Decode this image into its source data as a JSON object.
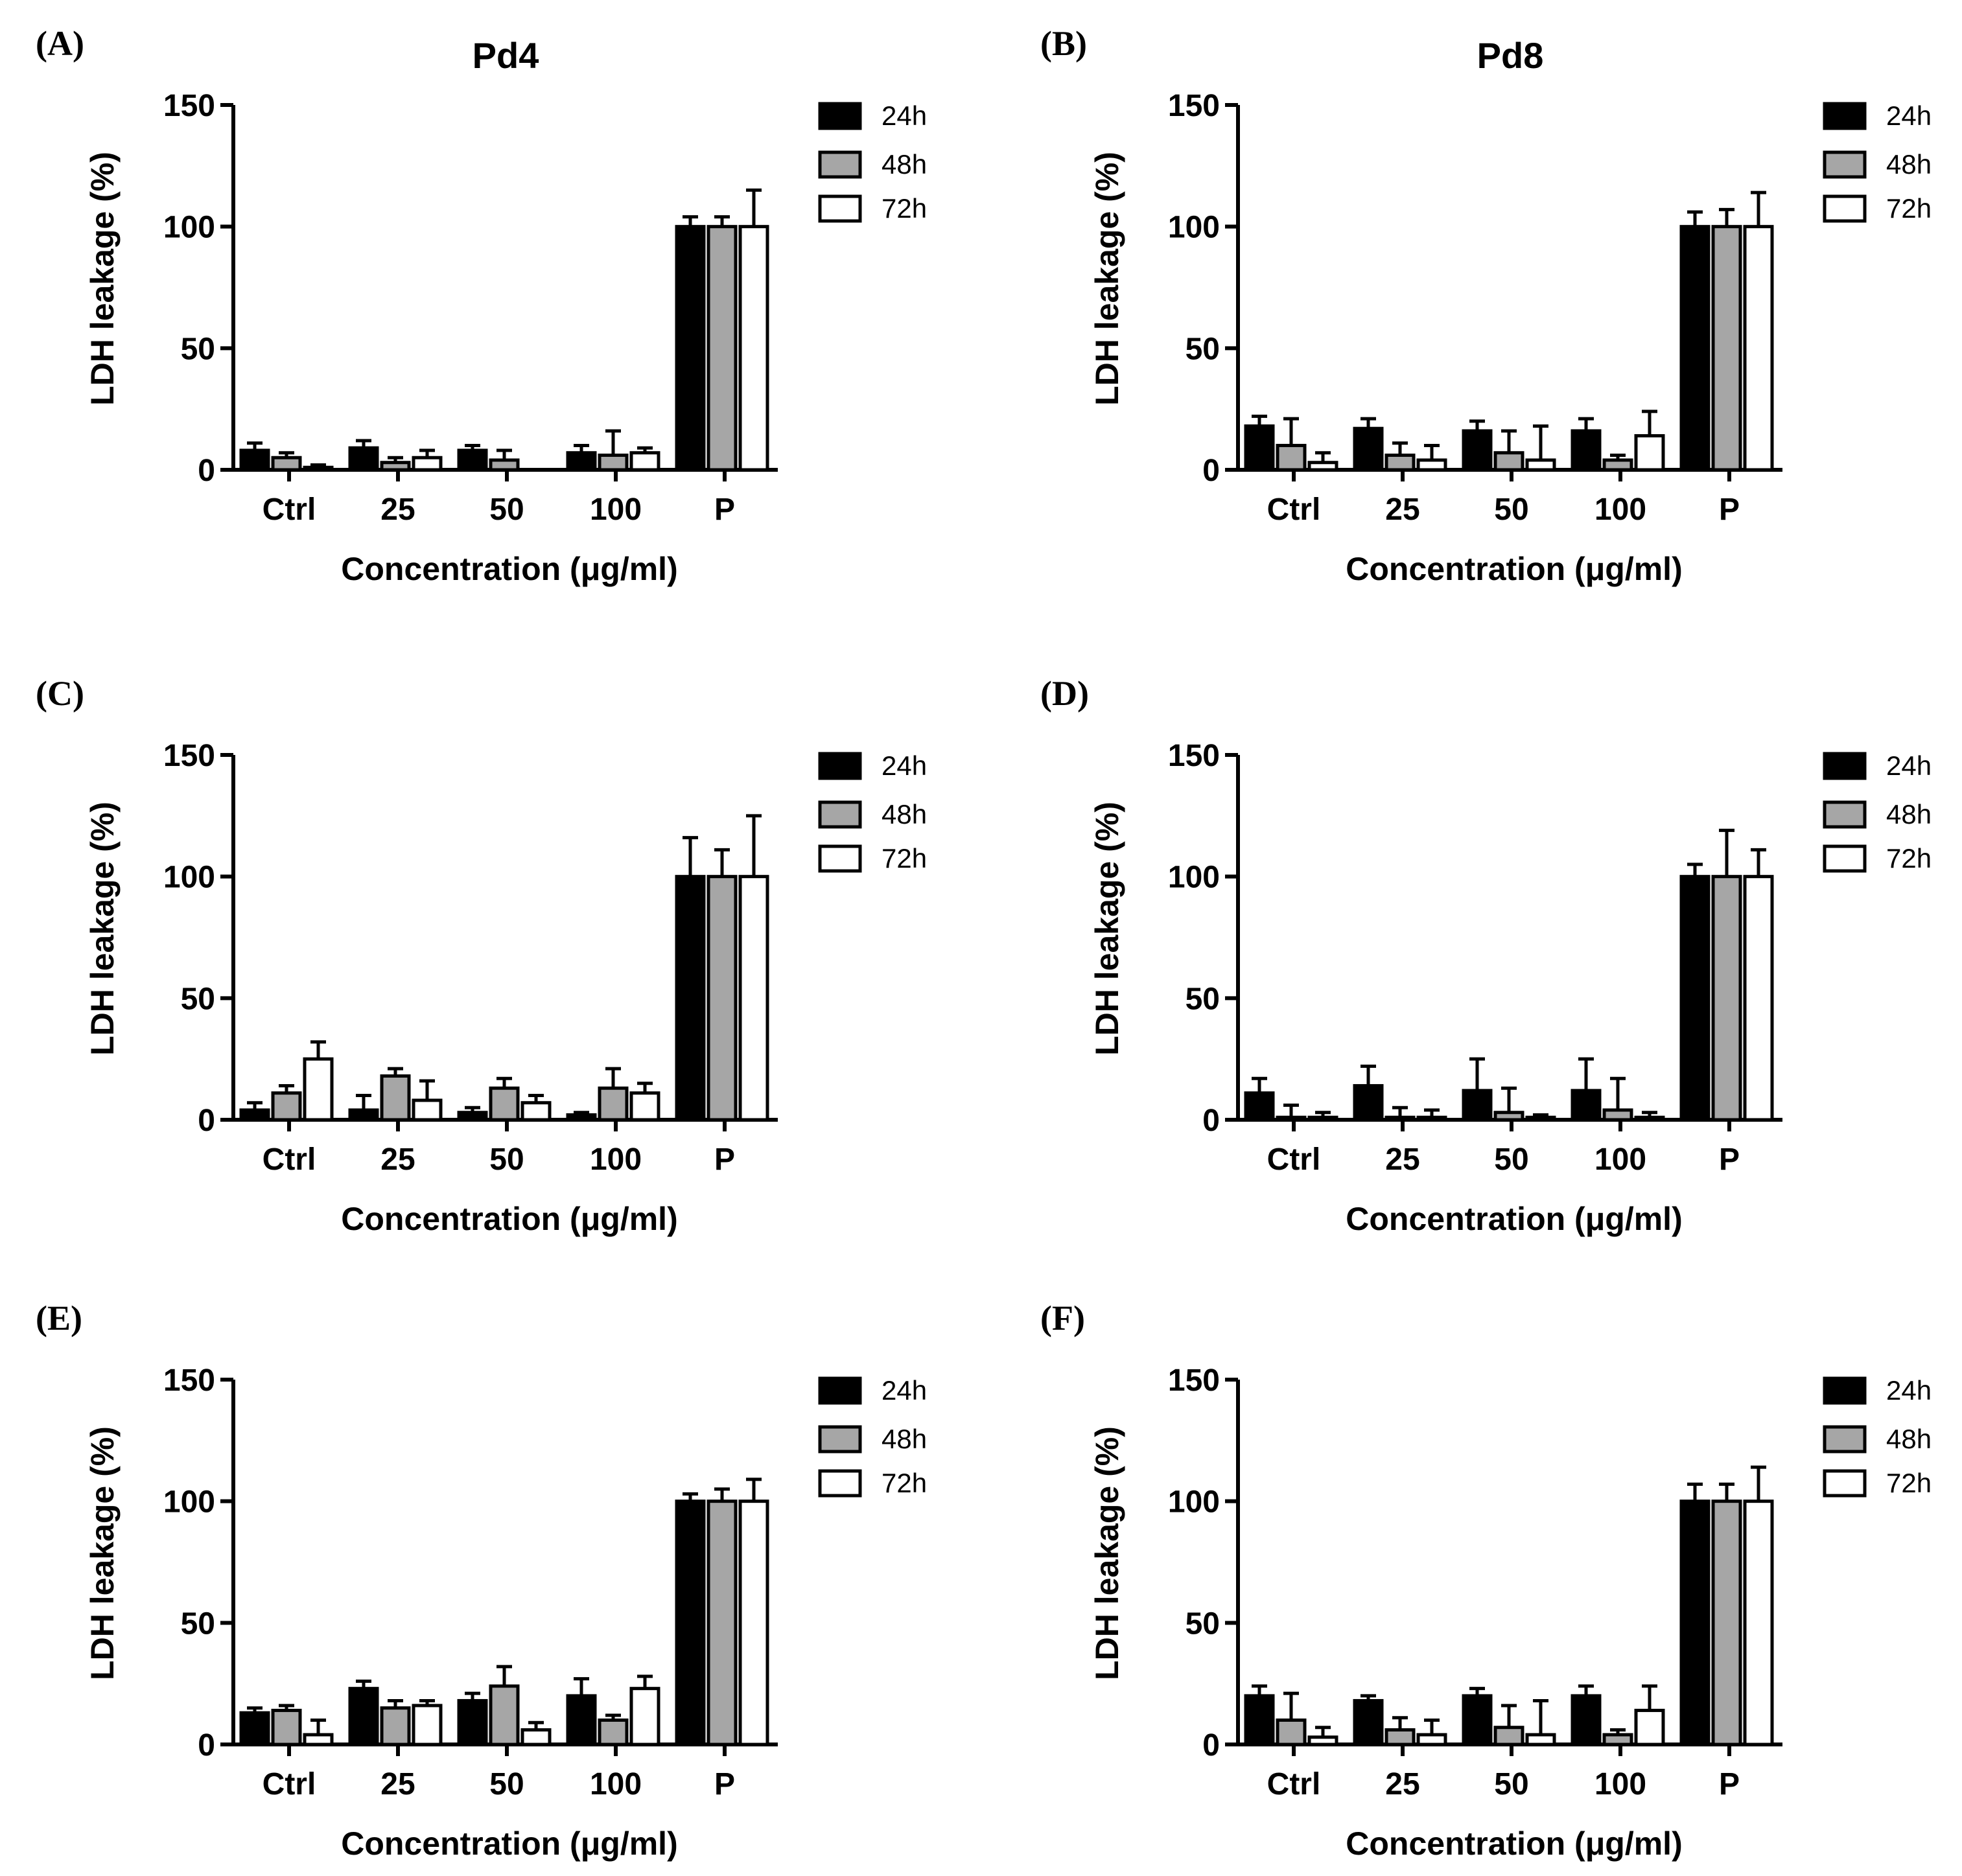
{
  "figure": {
    "legend": {
      "entries": [
        {
          "label": "24h",
          "color": "#000000"
        },
        {
          "label": "48h",
          "color": "#a6a6a6"
        },
        {
          "label": "72h",
          "color": "#ffffff"
        }
      ]
    }
  },
  "chart_data": [
    {
      "panel": "(A)",
      "title": "Pd4",
      "type": "bar",
      "xlabel": "Concentration (μg/ml)",
      "ylabel": "LDH leakage (%)",
      "ylim": [
        0,
        150
      ],
      "yticks": [
        "0",
        "50",
        "100",
        "150"
      ],
      "categories": [
        "Ctrl",
        "25",
        "50",
        "100",
        "P"
      ],
      "series": [
        {
          "name": "24h",
          "values": [
            8,
            9,
            8,
            7,
            100
          ],
          "errors": [
            3,
            3,
            2,
            3,
            4
          ]
        },
        {
          "name": "48h",
          "values": [
            5,
            3,
            4,
            6,
            100
          ],
          "errors": [
            2,
            2,
            4,
            10,
            4
          ]
        },
        {
          "name": "72h",
          "values": [
            1,
            5,
            0,
            7,
            100
          ],
          "errors": [
            1,
            3,
            0,
            2,
            15
          ]
        }
      ]
    },
    {
      "panel": "(B)",
      "title": "Pd8",
      "type": "bar",
      "xlabel": "Concentration (μg/ml)",
      "ylabel": "LDH leakage (%)",
      "ylim": [
        0,
        150
      ],
      "yticks": [
        "0",
        "50",
        "100",
        "150"
      ],
      "categories": [
        "Ctrl",
        "25",
        "50",
        "100",
        "P"
      ],
      "series": [
        {
          "name": "24h",
          "values": [
            18,
            17,
            16,
            16,
            100
          ],
          "errors": [
            4,
            4,
            4,
            5,
            6
          ]
        },
        {
          "name": "48h",
          "values": [
            10,
            6,
            7,
            4,
            100
          ],
          "errors": [
            11,
            5,
            9,
            2,
            7
          ]
        },
        {
          "name": "72h",
          "values": [
            3,
            4,
            4,
            14,
            100
          ],
          "errors": [
            4,
            6,
            14,
            10,
            14
          ]
        }
      ]
    },
    {
      "panel": "(C)",
      "title": "",
      "type": "bar",
      "xlabel": "Concentration (μg/ml)",
      "ylabel": "LDH leakage (%)",
      "ylim": [
        0,
        150
      ],
      "yticks": [
        "0",
        "50",
        "100",
        "150"
      ],
      "categories": [
        "Ctrl",
        "25",
        "50",
        "100",
        "P"
      ],
      "series": [
        {
          "name": "24h",
          "values": [
            4,
            4,
            3,
            2,
            100
          ],
          "errors": [
            3,
            6,
            2,
            1,
            16
          ]
        },
        {
          "name": "48h",
          "values": [
            11,
            18,
            13,
            13,
            100
          ],
          "errors": [
            3,
            3,
            4,
            8,
            11
          ]
        },
        {
          "name": "72h",
          "values": [
            25,
            8,
            7,
            11,
            100
          ],
          "errors": [
            7,
            8,
            3,
            4,
            25
          ]
        }
      ]
    },
    {
      "panel": "(D)",
      "title": "",
      "type": "bar",
      "xlabel": "Concentration (μg/ml)",
      "ylabel": "LDH leakage (%)",
      "ylim": [
        0,
        150
      ],
      "yticks": [
        "0",
        "50",
        "100",
        "150"
      ],
      "categories": [
        "Ctrl",
        "25",
        "50",
        "100",
        "P"
      ],
      "series": [
        {
          "name": "24h",
          "values": [
            11,
            14,
            12,
            12,
            100
          ],
          "errors": [
            6,
            8,
            13,
            13,
            5
          ]
        },
        {
          "name": "48h",
          "values": [
            1,
            1,
            3,
            4,
            100
          ],
          "errors": [
            5,
            4,
            10,
            13,
            19
          ]
        },
        {
          "name": "72h",
          "values": [
            1,
            1,
            1,
            1,
            100
          ],
          "errors": [
            2,
            3,
            1,
            2,
            11
          ]
        }
      ]
    },
    {
      "panel": "(E)",
      "title": "",
      "type": "bar",
      "xlabel": "Concentration (μg/ml)",
      "ylabel": "LDH leakage (%)",
      "ylim": [
        0,
        150
      ],
      "yticks": [
        "0",
        "50",
        "100",
        "150"
      ],
      "categories": [
        "Ctrl",
        "25",
        "50",
        "100",
        "P"
      ],
      "series": [
        {
          "name": "24h",
          "values": [
            13,
            23,
            18,
            20,
            100
          ],
          "errors": [
            2,
            3,
            3,
            7,
            3
          ]
        },
        {
          "name": "48h",
          "values": [
            14,
            15,
            24,
            10,
            100
          ],
          "errors": [
            2,
            3,
            8,
            2,
            5
          ]
        },
        {
          "name": "72h",
          "values": [
            4,
            16,
            6,
            23,
            100
          ],
          "errors": [
            6,
            2,
            3,
            5,
            9
          ]
        }
      ]
    },
    {
      "panel": "(F)",
      "title": "",
      "type": "bar",
      "xlabel": "Concentration (μg/ml)",
      "ylabel": "LDH leakage (%)",
      "ylim": [
        0,
        150
      ],
      "yticks": [
        "0",
        "50",
        "100",
        "150"
      ],
      "categories": [
        "Ctrl",
        "25",
        "50",
        "100",
        "P"
      ],
      "series": [
        {
          "name": "24h",
          "values": [
            20,
            18,
            20,
            20,
            100
          ],
          "errors": [
            4,
            2,
            3,
            4,
            7
          ]
        },
        {
          "name": "48h",
          "values": [
            10,
            6,
            7,
            4,
            100
          ],
          "errors": [
            11,
            5,
            9,
            2,
            7
          ]
        },
        {
          "name": "72h",
          "values": [
            3,
            4,
            4,
            14,
            100
          ],
          "errors": [
            4,
            6,
            14,
            10,
            14
          ]
        }
      ]
    }
  ]
}
